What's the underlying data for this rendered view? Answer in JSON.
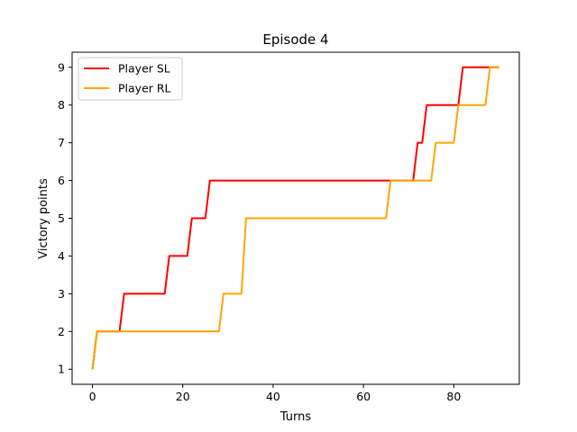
{
  "chart_data": {
    "type": "line",
    "title": "Episode 4",
    "xlabel": "Turns",
    "ylabel": "Victory points",
    "xlim": [
      -4.5,
      94.5
    ],
    "ylim": [
      0.6,
      9.4
    ],
    "xticks": [
      0,
      20,
      40,
      60,
      80
    ],
    "yticks": [
      1,
      2,
      3,
      4,
      5,
      6,
      7,
      8,
      9
    ],
    "grid": false,
    "legend_position": "top-left",
    "series": [
      {
        "name": "Player SL",
        "color": "#ff0000",
        "points": [
          [
            0,
            1
          ],
          [
            1,
            2
          ],
          [
            6,
            2
          ],
          [
            7,
            3
          ],
          [
            16,
            3
          ],
          [
            17,
            4
          ],
          [
            21,
            4
          ],
          [
            22,
            5
          ],
          [
            25,
            5
          ],
          [
            26,
            6
          ],
          [
            71,
            6
          ],
          [
            72,
            7
          ],
          [
            73,
            7
          ],
          [
            74,
            8
          ],
          [
            81,
            8
          ],
          [
            82,
            9
          ],
          [
            90,
            9
          ]
        ]
      },
      {
        "name": "Player RL",
        "color": "#ffa500",
        "points": [
          [
            0,
            1
          ],
          [
            1,
            2
          ],
          [
            28,
            2
          ],
          [
            29,
            3
          ],
          [
            33,
            3
          ],
          [
            34,
            5
          ],
          [
            65,
            5
          ],
          [
            66,
            6
          ],
          [
            75,
            6
          ],
          [
            76,
            7
          ],
          [
            80,
            7
          ],
          [
            81,
            8
          ],
          [
            87,
            8
          ],
          [
            88,
            9
          ],
          [
            90,
            9
          ]
        ]
      }
    ]
  }
}
